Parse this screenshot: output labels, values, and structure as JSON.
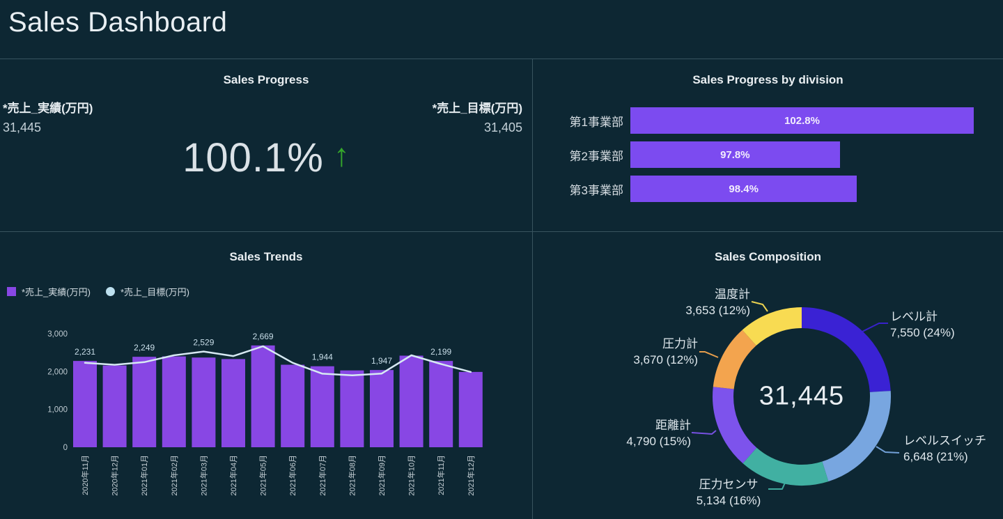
{
  "page": {
    "title": "Sales Dashboard"
  },
  "colors": {
    "background": "#0d2733",
    "divider": "rgba(170,200,212,0.28)",
    "kpi_arrow_green": "#35a62b",
    "division_bar_purple": "#7c4bf0",
    "trend_bar_purple": "#8847e4",
    "trend_line_blue": "#d7e9f3"
  },
  "chart_data": [
    {
      "id": "sales-progress",
      "type": "kpi",
      "title": "Sales Progress",
      "actual_label": "*売上_実績(万円)",
      "actual_value": 31445,
      "actual_display": "31,445",
      "target_label": "*売上_目標(万円)",
      "target_value": 31405,
      "target_display": "31,405",
      "percent": "100.1%",
      "trend_direction": "up",
      "arrow_glyph": "↑"
    },
    {
      "id": "sales-progress-by-division",
      "type": "bar",
      "orientation": "horizontal",
      "title": "Sales Progress by division",
      "categories": [
        "第1事業部",
        "第2事業部",
        "第3事業部"
      ],
      "values": [
        102.8,
        97.8,
        98.4
      ],
      "value_labels": [
        "102.8%",
        "97.8%",
        "98.4%"
      ],
      "bar_length_pct": [
        100,
        61,
        66
      ],
      "bar_color": "#7c4bf0"
    },
    {
      "id": "sales-trends",
      "type": "bar+line",
      "title": "Sales Trends",
      "x": [
        "2020年11月",
        "2020年12月",
        "2021年01月",
        "2021年02月",
        "2021年03月",
        "2021年04月",
        "2021年05月",
        "2021年06月",
        "2021年07月",
        "2021年08月",
        "2021年09月",
        "2021年10月",
        "2021年11月",
        "2021年12月"
      ],
      "ylim": [
        0,
        3000
      ],
      "ytick_values": [
        0,
        1000,
        2000,
        3000
      ],
      "ytick_labels": [
        "0",
        "1,000",
        "2,000",
        "3,000"
      ],
      "legend_position": "top-left",
      "series": [
        {
          "name": "*売上_実績(万円)",
          "type": "bar",
          "color": "#8847e4",
          "values": [
            2280,
            2160,
            2390,
            2400,
            2370,
            2330,
            2690,
            2180,
            2140,
            2030,
            2040,
            2420,
            2280,
            1990
          ]
        },
        {
          "name": "*売上_目標(万円)",
          "type": "line",
          "color": "#d7e9f3",
          "values": [
            2231,
            2180,
            2249,
            2430,
            2529,
            2410,
            2669,
            2230,
            1944,
            1900,
            1947,
            2430,
            2199,
            1990
          ],
          "point_labels": [
            "2,231",
            null,
            "2,249",
            null,
            "2,529",
            null,
            "2,669",
            null,
            "1,944",
            null,
            "1,947",
            null,
            "2,199",
            null
          ]
        }
      ]
    },
    {
      "id": "sales-composition",
      "type": "donut",
      "title": "Sales Composition",
      "center_total": 31445,
      "center_display": "31,445",
      "segments": [
        {
          "label": "レベル計",
          "value": 7550,
          "pct": 24,
          "display": "7,550 (24%)",
          "color": "#3a22d4"
        },
        {
          "label": "レベルスイッチ",
          "value": 6648,
          "pct": 21,
          "display": "6,648 (21%)",
          "color": "#78a6e0"
        },
        {
          "label": "圧力センサ",
          "value": 5134,
          "pct": 16,
          "display": "5,134 (16%)",
          "color": "#41b0a2"
        },
        {
          "label": "距離計",
          "value": 4790,
          "pct": 15,
          "display": "4,790 (15%)",
          "color": "#7d53ec"
        },
        {
          "label": "圧力計",
          "value": 3670,
          "pct": 12,
          "display": "3,670 (12%)",
          "color": "#f3a44e"
        },
        {
          "label": "温度計",
          "value": 3653,
          "pct": 12,
          "display": "3,653 (12%)",
          "color": "#f8db52"
        }
      ]
    }
  ]
}
